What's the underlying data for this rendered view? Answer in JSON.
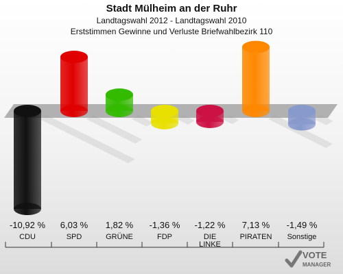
{
  "chart_data": {
    "type": "bar",
    "title": "Stadt Mülheim an der Ruhr",
    "subtitle": "Landtagswahl 2012 - Landtagswahl 2010",
    "subtitle2": "Erststimmen Gewinne und Verluste Briefwahlbezirk 110",
    "categories": [
      "CDU",
      "SPD",
      "GRÜNE",
      "FDP",
      "DIE LINKE",
      "PIRATEN",
      "Sonstige"
    ],
    "values": [
      -10.92,
      6.03,
      1.82,
      -1.36,
      -1.22,
      7.13,
      -1.49
    ],
    "value_labels": [
      "-10,92 %",
      "6,03 %",
      "1,82 %",
      "-1,36 %",
      "-1,22 %",
      "7,13 %",
      "-1,49 %"
    ],
    "colors": [
      "#111111",
      "#e00000",
      "#33bb00",
      "#e8e000",
      "#cc1144",
      "#ff8800",
      "#8899cc"
    ],
    "ylim": [
      -10.92,
      7.13
    ],
    "grid": false,
    "legend": "none"
  },
  "branding": {
    "logo_line1": "VOTE",
    "logo_line2": "MANAGER"
  }
}
